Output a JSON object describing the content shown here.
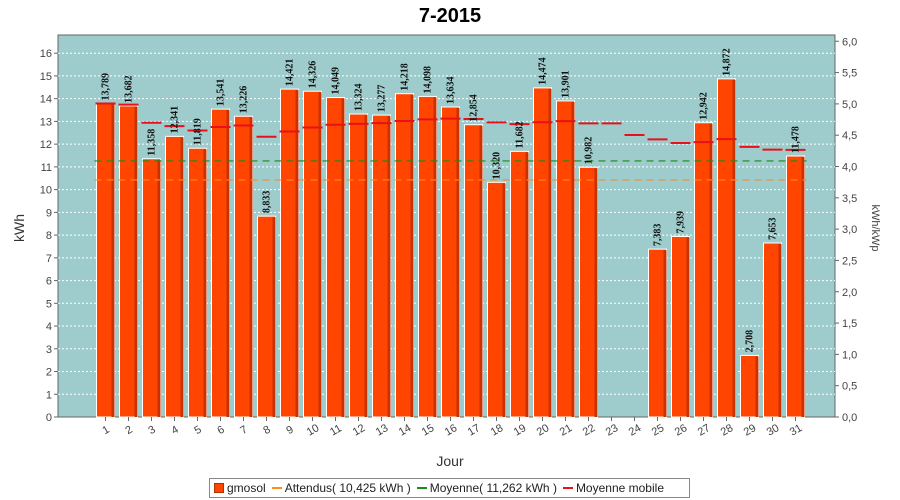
{
  "chart_data": {
    "type": "bar",
    "title": "7-2015",
    "xlabel": "Jour",
    "ylabel": "kWh",
    "y2label": "kWh/kWp",
    "categories": [
      "1",
      "2",
      "3",
      "4",
      "5",
      "6",
      "7",
      "8",
      "9",
      "10",
      "11",
      "12",
      "13",
      "14",
      "15",
      "16",
      "17",
      "18",
      "19",
      "20",
      "21",
      "22",
      "23",
      "24",
      "25",
      "26",
      "27",
      "28",
      "29",
      "30",
      "31"
    ],
    "ylim": [
      0,
      16.8
    ],
    "y2lim": [
      0,
      6.1
    ],
    "yticks": [
      "0",
      "1",
      "2",
      "3",
      "4",
      "5",
      "6",
      "7",
      "8",
      "9",
      "10",
      "11",
      "12",
      "13",
      "14",
      "15",
      "16"
    ],
    "y2ticks": [
      "0,0",
      "0,5",
      "1,0",
      "1,5",
      "2,0",
      "2,5",
      "3,0",
      "3,5",
      "4,0",
      "4,5",
      "5,0",
      "5,5",
      "6,0"
    ],
    "grid": true,
    "legend_position": "bottom",
    "series": [
      {
        "name": "gmosol",
        "kind": "bar",
        "color": "#ff4500",
        "values": [
          13.789,
          13.682,
          11.358,
          12.341,
          11.819,
          13.541,
          13.226,
          8.833,
          14.421,
          14.326,
          14.049,
          13.324,
          13.277,
          14.218,
          14.098,
          13.634,
          12.854,
          10.32,
          11.682,
          14.474,
          13.901,
          10.982,
          null,
          null,
          7.383,
          7.939,
          12.942,
          14.872,
          2.708,
          7.653,
          11.478
        ],
        "labels": [
          "13,789",
          "13,682",
          "11,358",
          "12,341",
          "11,819",
          "13,541",
          "13,226",
          "8,833",
          "14,421",
          "14,326",
          "14,049",
          "13,324",
          "13,277",
          "14,218",
          "14,098",
          "13,634",
          "12,854",
          "10,320",
          "11,682",
          "14,474",
          "13,901",
          "10,982",
          "",
          "",
          "7,383",
          "7,939",
          "12,942",
          "14,872",
          "2,708",
          "7,653",
          "11,478"
        ]
      },
      {
        "name": "Attendus( 10,425 kWh )",
        "kind": "line",
        "color": "#ff8c1a",
        "value": 10.425
      },
      {
        "name": "Moyenne( 11,262 kWh )",
        "kind": "line",
        "color": "#1a8c1a",
        "value": 11.262
      },
      {
        "name": "Moyenne mobile",
        "kind": "marker",
        "color": "#e8101a",
        "values": [
          13.789,
          13.736,
          12.943,
          12.793,
          12.598,
          12.755,
          12.822,
          12.324,
          12.557,
          12.733,
          12.853,
          12.893,
          12.922,
          13.016,
          13.09,
          13.124,
          13.107,
          12.955,
          12.883,
          12.963,
          13.01,
          12.916,
          12.916,
          12.4,
          12.207,
          12.05,
          12.09,
          12.22,
          11.88,
          11.76,
          11.75
        ]
      }
    ],
    "legend": [
      "gmosol",
      "Attendus( 10,425 kWh )",
      "Moyenne( 11,262 kWh )",
      "Moyenne mobile"
    ]
  }
}
